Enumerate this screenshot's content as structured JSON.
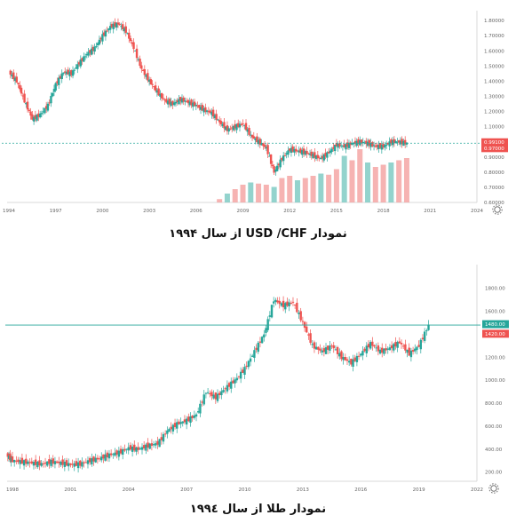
{
  "chart_data": [
    {
      "type": "candlestick",
      "title": "نمودار USD /CHF از سال ۱۹۹۴",
      "xlabel": "",
      "ylabel": "",
      "x_ticks": [
        "1994",
        "1997",
        "2000",
        "2003",
        "2006",
        "2009",
        "2012",
        "2015",
        "2018",
        "2021",
        "2024"
      ],
      "y_ticks": [
        "1.80000",
        "1.70000",
        "1.60000",
        "1.50000",
        "1.40000",
        "1.30000",
        "1.20000",
        "1.10000",
        "1.00000",
        "0.90000",
        "0.80000",
        "0.70000",
        "0.60000"
      ],
      "ylim": [
        0.6,
        1.83
      ],
      "current_price_labels": [
        {
          "text": "0.99100",
          "value": 0.991,
          "color": "#ef5350"
        },
        {
          "text": "0.97000",
          "value": 0.97,
          "color": "#ef5350"
        }
      ],
      "current_price_line": 0.991,
      "series": [
        {
          "x": [
            1994.0,
            1994.5,
            1995.0,
            1995.5,
            1996.0,
            1996.5,
            1997.0,
            1997.5,
            1998.0,
            1998.5,
            1999.0,
            1999.5,
            2000.0,
            2000.5,
            2001.0,
            2001.5,
            2002.0,
            2002.5,
            2003.0,
            2003.5,
            2004.0,
            2004.5,
            2005.0,
            2005.5,
            2006.0,
            2006.5,
            2007.0,
            2007.5,
            2008.0,
            2008.5,
            2009.0,
            2009.5,
            2010.0,
            2010.5,
            2011.0,
            2011.5,
            2012.0,
            2012.5,
            2013.0,
            2013.5,
            2014.0,
            2014.5,
            2015.0,
            2015.5,
            2016.0,
            2016.5,
            2017.0,
            2017.5,
            2018.0,
            2018.5,
            2019.0,
            2019.5
          ],
          "y": [
            1.46,
            1.4,
            1.27,
            1.15,
            1.18,
            1.24,
            1.38,
            1.46,
            1.45,
            1.52,
            1.58,
            1.62,
            1.7,
            1.76,
            1.78,
            1.73,
            1.62,
            1.48,
            1.4,
            1.33,
            1.27,
            1.25,
            1.28,
            1.26,
            1.24,
            1.21,
            1.19,
            1.13,
            1.08,
            1.1,
            1.12,
            1.04,
            1.0,
            0.96,
            0.8,
            0.89,
            0.95,
            0.94,
            0.93,
            0.91,
            0.89,
            0.93,
            0.98,
            0.97,
            0.99,
            1.0,
            0.99,
            0.97,
            0.97,
            1.0,
            1.0,
            0.99
          ]
        }
      ],
      "volume": {
        "x": [
          2007.5,
          2008.0,
          2008.5,
          2009.0,
          2009.5,
          2010.0,
          2010.5,
          2011.0,
          2011.5,
          2012.0,
          2012.5,
          2013.0,
          2013.5,
          2014.0,
          2014.5,
          2015.0,
          2015.5,
          2016.0,
          2016.5,
          2017.0,
          2017.5,
          2018.0,
          2018.5,
          2019.0,
          2019.5
        ],
        "values": [
          3,
          8,
          12,
          16,
          18,
          17,
          16,
          14,
          22,
          24,
          20,
          22,
          24,
          26,
          25,
          30,
          42,
          38,
          48,
          36,
          32,
          34,
          36,
          38,
          40
        ]
      }
    },
    {
      "type": "candlestick",
      "title": "نمودار طلا از سال ۱۹۹٤",
      "xlabel": "",
      "ylabel": "",
      "x_ticks": [
        "1998",
        "2001",
        "2004",
        "2007",
        "2010",
        "2013",
        "2016",
        "2019",
        "2022"
      ],
      "y_ticks": [
        "1800.00",
        "1600.00",
        "1400.00",
        "1200.00",
        "1000.00",
        "800.00",
        "600.00",
        "400.00",
        "200.00"
      ],
      "ylim": [
        120,
        1960
      ],
      "current_price_labels": [
        {
          "text": "1480.00",
          "value": 1480,
          "color": "#26a69a"
        },
        {
          "text": "1420.00",
          "value": 1420,
          "color": "#ef5350"
        }
      ],
      "current_price_line": 1480,
      "series": [
        {
          "x": [
            1997.7,
            1998.0,
            1998.5,
            1999.0,
            1999.5,
            2000.0,
            2000.5,
            2001.0,
            2001.5,
            2002.0,
            2002.5,
            2003.0,
            2003.5,
            2004.0,
            2004.5,
            2005.0,
            2005.5,
            2006.0,
            2006.5,
            2007.0,
            2007.5,
            2008.0,
            2008.5,
            2009.0,
            2009.5,
            2010.0,
            2010.5,
            2011.0,
            2011.5,
            2012.0,
            2012.5,
            2013.0,
            2013.5,
            2014.0,
            2014.5,
            2015.0,
            2015.5,
            2016.0,
            2016.5,
            2017.0,
            2017.5,
            2018.0,
            2018.5,
            2019.0,
            2019.5
          ],
          "y": [
            350,
            300,
            290,
            280,
            270,
            290,
            280,
            265,
            270,
            300,
            320,
            350,
            370,
            410,
            400,
            430,
            450,
            560,
            620,
            650,
            700,
            900,
            850,
            930,
            1000,
            1100,
            1250,
            1400,
            1700,
            1650,
            1680,
            1500,
            1300,
            1250,
            1300,
            1200,
            1150,
            1230,
            1320,
            1250,
            1280,
            1330,
            1230,
            1300,
            1480
          ]
        }
      ]
    }
  ]
}
